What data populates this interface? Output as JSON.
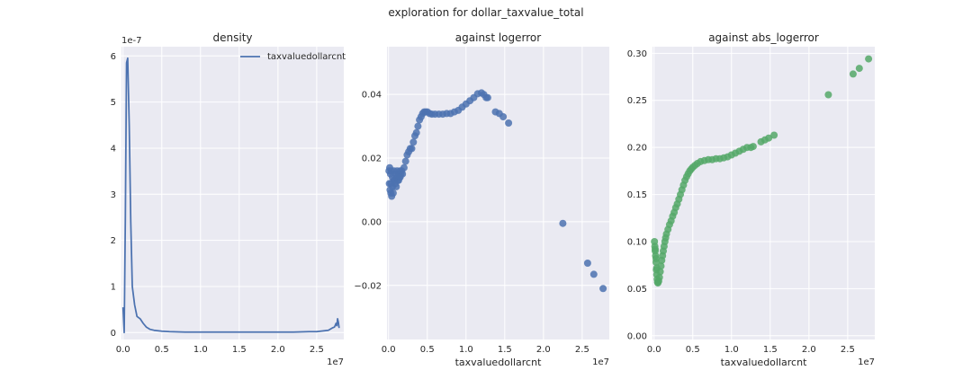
{
  "colors": {
    "axes_bg": "#eaeaf2",
    "grid": "#ffffff",
    "blue": "#4c72b0",
    "green": "#55a868"
  },
  "chart_data": [
    {
      "type": "line",
      "title": "density",
      "suptitle": "exploration for dollar_taxvalue_total",
      "xlabel": "",
      "ylabel": "",
      "x_offset_label": "1e7",
      "y_offset_label": "1e-7",
      "xlim": [
        -0.2,
        28.5
      ],
      "ylim": [
        -0.15,
        6.2
      ],
      "x_ticks": [
        0.0,
        0.5,
        1.0,
        1.5,
        2.0,
        2.5
      ],
      "x_tick_labels": [
        "0.0",
        "0.5",
        "1.0",
        "1.5",
        "2.0",
        "2.5"
      ],
      "y_ticks": [
        0,
        1,
        2,
        3,
        4,
        5,
        6
      ],
      "y_tick_labels": [
        "0",
        "1",
        "2",
        "3",
        "4",
        "5",
        "6"
      ],
      "x_tick_positions": [
        0,
        5,
        10,
        15,
        20,
        25
      ],
      "legend": {
        "label": "taxvaluedollarcnt",
        "position": "top-right"
      },
      "series": [
        {
          "name": "taxvaluedollarcnt",
          "color": "#4c72b0",
          "x": [
            0,
            0.15,
            0.3,
            0.45,
            0.6,
            0.8,
            1.0,
            1.2,
            1.5,
            1.8,
            2.2,
            2.6,
            3.0,
            3.5,
            4.0,
            5.0,
            6.0,
            8.0,
            10,
            12,
            14,
            16,
            18,
            20,
            22,
            24,
            25,
            26,
            26.5,
            27,
            27.3,
            27.5,
            27.6,
            27.7,
            27.8,
            27.9
          ],
          "y": [
            0.55,
            0.0,
            2.5,
            5.85,
            5.95,
            4.5,
            2.4,
            1.0,
            0.6,
            0.35,
            0.3,
            0.2,
            0.12,
            0.07,
            0.05,
            0.03,
            0.02,
            0.01,
            0.01,
            0.01,
            0.01,
            0.01,
            0.01,
            0.01,
            0.01,
            0.02,
            0.02,
            0.04,
            0.05,
            0.1,
            0.12,
            0.2,
            0.15,
            0.3,
            0.22,
            0.1
          ]
        }
      ]
    },
    {
      "type": "scatter",
      "title": "against logerror",
      "xlabel": "taxvaluedollarcnt",
      "ylabel": "",
      "x_offset_label": "1e7",
      "xlim": [
        -0.2,
        28.5
      ],
      "ylim": [
        -0.037,
        0.055
      ],
      "x_ticks": [
        0.0,
        0.5,
        1.0,
        1.5,
        2.0,
        2.5
      ],
      "x_tick_labels": [
        "0.0",
        "0.5",
        "1.0",
        "1.5",
        "2.0",
        "2.5"
      ],
      "x_tick_positions": [
        0,
        5,
        10,
        15,
        20,
        25
      ],
      "y_ticks": [
        -0.02,
        0.0,
        0.02,
        0.04
      ],
      "y_tick_labels": [
        "−0.02",
        "0.00",
        "0.02",
        "0.04"
      ],
      "series": [
        {
          "color": "#4c72b0",
          "x": [
            0.05,
            0.1,
            0.15,
            0.2,
            0.25,
            0.3,
            0.35,
            0.4,
            0.5,
            0.6,
            0.7,
            0.8,
            0.9,
            1.0,
            1.1,
            1.2,
            1.3,
            1.4,
            1.5,
            1.6,
            1.7,
            1.8,
            2.0,
            2.2,
            2.4,
            2.6,
            2.8,
            3.0,
            3.2,
            3.4,
            3.6,
            3.8,
            4.0,
            4.2,
            4.4,
            4.6,
            4.8,
            5.0,
            5.3,
            5.6,
            6.0,
            6.5,
            7.0,
            7.5,
            8.0,
            8.5,
            9.0,
            9.5,
            10.0,
            10.5,
            11.0,
            11.5,
            12.0,
            12.3,
            12.6,
            12.8,
            13.8,
            14.3,
            14.8,
            15.5,
            22.5,
            25.7,
            26.5,
            27.7,
            0.3,
            0.5,
            0.7,
            0.9,
            1.1,
            1.3,
            1.5
          ],
          "y": [
            0.016,
            0.012,
            0.017,
            0.01,
            0.015,
            0.009,
            0.016,
            0.008,
            0.014,
            0.009,
            0.016,
            0.013,
            0.015,
            0.011,
            0.016,
            0.013,
            0.015,
            0.014,
            0.016,
            0.015,
            0.016,
            0.015,
            0.017,
            0.019,
            0.021,
            0.022,
            0.023,
            0.023,
            0.025,
            0.027,
            0.028,
            0.03,
            0.032,
            0.033,
            0.034,
            0.0345,
            0.0345,
            0.0345,
            0.034,
            0.0338,
            0.0338,
            0.0338,
            0.0338,
            0.034,
            0.034,
            0.0345,
            0.035,
            0.036,
            0.037,
            0.038,
            0.039,
            0.0402,
            0.0405,
            0.04,
            0.039,
            0.039,
            0.0345,
            0.034,
            0.033,
            0.031,
            -0.0005,
            -0.013,
            -0.0165,
            -0.021,
            0.012,
            0.011,
            0.013,
            0.012,
            0.014,
            0.013,
            0.014
          ]
        }
      ]
    },
    {
      "type": "scatter",
      "title": "against abs_logerror",
      "xlabel": "taxvaluedollarcnt",
      "ylabel": "",
      "x_offset_label": "1e7",
      "xlim": [
        -0.2,
        28.5
      ],
      "ylim": [
        -0.004,
        0.307
      ],
      "x_ticks": [
        0.0,
        0.5,
        1.0,
        1.5,
        2.0,
        2.5
      ],
      "x_tick_labels": [
        "0.0",
        "0.5",
        "1.0",
        "1.5",
        "2.0",
        "2.5"
      ],
      "x_tick_positions": [
        0,
        5,
        10,
        15,
        20,
        25
      ],
      "y_ticks": [
        0.0,
        0.05,
        0.1,
        0.15,
        0.2,
        0.25,
        0.3
      ],
      "y_tick_labels": [
        "0.00",
        "0.05",
        "0.10",
        "0.15",
        "0.20",
        "0.25",
        "0.30"
      ],
      "series": [
        {
          "color": "#55a868",
          "x": [
            0.05,
            0.1,
            0.15,
            0.2,
            0.25,
            0.3,
            0.35,
            0.4,
            0.45,
            0.5,
            0.6,
            0.7,
            0.8,
            0.9,
            1.0,
            1.1,
            1.2,
            1.3,
            1.4,
            1.5,
            1.6,
            1.8,
            2.0,
            2.2,
            2.4,
            2.6,
            2.8,
            3.0,
            3.2,
            3.4,
            3.6,
            3.8,
            4.0,
            4.2,
            4.4,
            4.6,
            4.8,
            5.0,
            5.3,
            5.6,
            6.0,
            6.5,
            7.0,
            7.5,
            8.0,
            8.5,
            9.0,
            9.5,
            10.0,
            10.5,
            11.0,
            11.5,
            12.0,
            12.5,
            12.8,
            13.8,
            14.3,
            14.8,
            15.5,
            22.5,
            25.7,
            26.5,
            27.7,
            0.15,
            0.25,
            0.35
          ],
          "y": [
            0.1,
            0.095,
            0.09,
            0.085,
            0.078,
            0.07,
            0.065,
            0.06,
            0.057,
            0.056,
            0.058,
            0.062,
            0.068,
            0.074,
            0.08,
            0.085,
            0.09,
            0.095,
            0.1,
            0.104,
            0.108,
            0.113,
            0.118,
            0.122,
            0.127,
            0.131,
            0.136,
            0.14,
            0.145,
            0.15,
            0.155,
            0.16,
            0.165,
            0.169,
            0.172,
            0.175,
            0.177,
            0.179,
            0.181,
            0.183,
            0.185,
            0.186,
            0.187,
            0.187,
            0.188,
            0.188,
            0.189,
            0.19,
            0.192,
            0.194,
            0.196,
            0.198,
            0.2,
            0.2,
            0.201,
            0.206,
            0.208,
            0.21,
            0.213,
            0.256,
            0.278,
            0.284,
            0.294,
            0.092,
            0.082,
            0.072
          ]
        }
      ]
    }
  ]
}
